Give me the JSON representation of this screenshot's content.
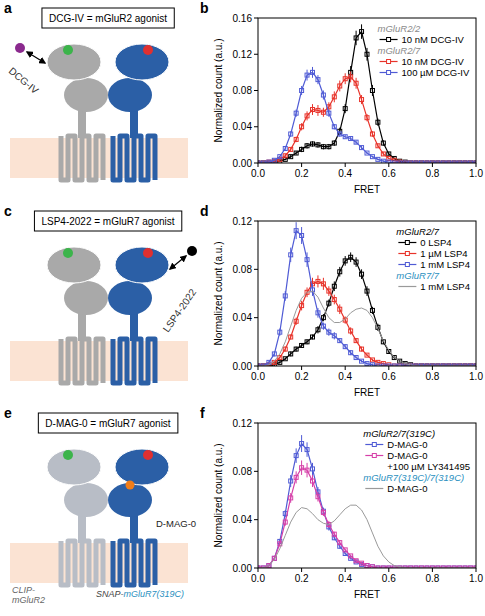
{
  "diagrams": [
    {
      "panel": "a",
      "box": "DCG-IV = mGluR2 agonist",
      "ligand": "DCG-IV"
    },
    {
      "panel": "c",
      "box": "LSP4-2022 = mGluR7 agonist",
      "ligand": "LSP4-2022"
    },
    {
      "panel": "e",
      "box": "D-MAG-0 = mGluR7 agonist",
      "ligand": "D-MAG-0",
      "subunit_labels": [
        "CLIP-mGluR2",
        "SNAP-mGluR7(319C)"
      ]
    }
  ],
  "chart_data": [
    {
      "panel": "b",
      "type": "line",
      "x_label": "FRET",
      "y_label": "Normalized count (a.u.)",
      "x": [
        0,
        0.025,
        0.05,
        0.075,
        0.1,
        0.125,
        0.15,
        0.175,
        0.2,
        0.225,
        0.25,
        0.275,
        0.3,
        0.325,
        0.35,
        0.375,
        0.4,
        0.425,
        0.45,
        0.475,
        0.5,
        0.525,
        0.55,
        0.575,
        0.6,
        0.625,
        0.65,
        0.675,
        0.7,
        0.725,
        0.75,
        0.775,
        0.8,
        0.825,
        0.85,
        0.875,
        0.9,
        0.925,
        0.95,
        0.975,
        1
      ],
      "xlim": [
        0,
        1
      ],
      "ylim": [
        0,
        0.16
      ],
      "xticks": [
        {
          "value": 0,
          "label": "0.0"
        },
        0.2,
        0.4,
        0.6,
        0.8,
        {
          "value": 1,
          "label": "1.0"
        }
      ],
      "yticks": [
        {
          "value": 0,
          "label": "0.00"
        },
        0.04,
        0.08,
        0.12,
        0.16
      ],
      "legend": "top right",
      "series": [
        {
          "group": "mGluR2/2",
          "name": "10 nM DCG-IV",
          "color": "#000000",
          "marker": "square",
          "line_style": "solid",
          "values": [
            0,
            0,
            0,
            0.001,
            0.002,
            0.004,
            0.007,
            0.011,
            0.015,
            0.019,
            0.021,
            0.02,
            0.018,
            0.018,
            0.022,
            0.035,
            0.06,
            0.1,
            0.138,
            0.145,
            0.12,
            0.08,
            0.045,
            0.022,
            0.01,
            0.005,
            0.002,
            0.001,
            0,
            0,
            0,
            0,
            0,
            0,
            0,
            0,
            0,
            0,
            0,
            0,
            0
          ],
          "errors": [
            0,
            0,
            0,
            0.001,
            0.001,
            0.001,
            0.002,
            0.002,
            0.003,
            0.003,
            0.003,
            0.003,
            0.003,
            0.003,
            0.003,
            0.004,
            0.005,
            0.007,
            0.008,
            0.008,
            0.007,
            0.006,
            0.004,
            0.003,
            0.002,
            0.001,
            0.001,
            0.001,
            0,
            0,
            0,
            0,
            0,
            0,
            0,
            0,
            0,
            0,
            0,
            0,
            0
          ]
        },
        {
          "group": "mGluR2/7",
          "name": "10 nM DCG-IV",
          "color": "#e8332a",
          "marker": "square",
          "line_style": "solid",
          "values": [
            0,
            0,
            0.001,
            0.002,
            0.004,
            0.008,
            0.015,
            0.026,
            0.04,
            0.052,
            0.059,
            0.058,
            0.056,
            0.062,
            0.073,
            0.085,
            0.093,
            0.095,
            0.088,
            0.07,
            0.05,
            0.032,
            0.019,
            0.01,
            0.005,
            0.003,
            0.001,
            0,
            0,
            0,
            0,
            0,
            0,
            0,
            0,
            0,
            0,
            0,
            0,
            0,
            0
          ],
          "errors": [
            0,
            0,
            0.001,
            0.001,
            0.001,
            0.002,
            0.002,
            0.003,
            0.004,
            0.005,
            0.006,
            0.006,
            0.005,
            0.005,
            0.006,
            0.006,
            0.006,
            0.006,
            0.006,
            0.005,
            0.004,
            0.003,
            0.002,
            0.002,
            0.001,
            0.001,
            0.001,
            0,
            0,
            0,
            0,
            0,
            0,
            0,
            0,
            0,
            0,
            0,
            0,
            0,
            0
          ]
        },
        {
          "name": "100 µM DCG-IV",
          "color": "#4f5bd5",
          "marker": "square",
          "line_style": "solid",
          "values": [
            0,
            0,
            0.001,
            0.003,
            0.007,
            0.016,
            0.032,
            0.055,
            0.08,
            0.097,
            0.1,
            0.092,
            0.075,
            0.055,
            0.04,
            0.032,
            0.029,
            0.027,
            0.023,
            0.017,
            0.011,
            0.007,
            0.004,
            0.002,
            0.001,
            0,
            0,
            0,
            0,
            0,
            0,
            0,
            0,
            0,
            0,
            0,
            0,
            0,
            0,
            0,
            0
          ],
          "errors": [
            0,
            0,
            0.001,
            0.001,
            0.001,
            0.002,
            0.003,
            0.004,
            0.005,
            0.006,
            0.006,
            0.005,
            0.005,
            0.004,
            0.003,
            0.003,
            0.002,
            0.002,
            0.002,
            0.002,
            0.001,
            0.001,
            0.001,
            0.001,
            0,
            0,
            0,
            0,
            0,
            0,
            0,
            0,
            0,
            0,
            0,
            0,
            0,
            0,
            0,
            0,
            0
          ]
        }
      ]
    },
    {
      "panel": "d",
      "type": "line",
      "x_label": "FRET",
      "y_label": "Normalized count (a.u.)",
      "x": [
        0,
        0.025,
        0.05,
        0.075,
        0.1,
        0.125,
        0.15,
        0.175,
        0.2,
        0.225,
        0.25,
        0.275,
        0.3,
        0.325,
        0.35,
        0.375,
        0.4,
        0.425,
        0.45,
        0.475,
        0.5,
        0.525,
        0.55,
        0.575,
        0.6,
        0.625,
        0.65,
        0.675,
        0.7,
        0.725,
        0.75,
        0.775,
        0.8,
        0.825,
        0.85,
        0.875,
        0.9,
        0.925,
        0.95,
        0.975,
        1
      ],
      "xlim": [
        0,
        1
      ],
      "ylim": [
        0,
        0.12
      ],
      "xticks": [
        {
          "value": 0,
          "label": "0.0"
        },
        0.2,
        0.4,
        0.6,
        0.8,
        {
          "value": 1,
          "label": "1.0"
        }
      ],
      "yticks": [
        {
          "value": 0,
          "label": "0.00"
        },
        0.04,
        0.08,
        0.12
      ],
      "legend": "top right",
      "series": [
        {
          "group": "mGluR2/7",
          "name": "0 LSP4",
          "color": "#000000",
          "marker": "square",
          "line_style": "solid",
          "values": [
            0,
            0,
            0,
            0.001,
            0.003,
            0.006,
            0.01,
            0.014,
            0.017,
            0.02,
            0.024,
            0.03,
            0.04,
            0.052,
            0.066,
            0.078,
            0.087,
            0.09,
            0.086,
            0.076,
            0.062,
            0.046,
            0.032,
            0.02,
            0.012,
            0.007,
            0.004,
            0.002,
            0.001,
            0,
            0,
            0,
            0,
            0,
            0,
            0,
            0,
            0,
            0,
            0,
            0
          ],
          "errors": [
            0,
            0,
            0,
            0.001,
            0.001,
            0.001,
            0.002,
            0.002,
            0.002,
            0.002,
            0.002,
            0.003,
            0.003,
            0.003,
            0.004,
            0.004,
            0.004,
            0.004,
            0.004,
            0.004,
            0.004,
            0.003,
            0.003,
            0.002,
            0.002,
            0.001,
            0.001,
            0.001,
            0.001,
            0,
            0,
            0,
            0,
            0,
            0,
            0,
            0,
            0,
            0,
            0,
            0
          ]
        },
        {
          "name": "1 µM LSP4",
          "color": "#e8332a",
          "marker": "square",
          "line_style": "solid",
          "values": [
            0,
            0,
            0.001,
            0.003,
            0.007,
            0.014,
            0.024,
            0.037,
            0.05,
            0.061,
            0.068,
            0.07,
            0.068,
            0.062,
            0.055,
            0.047,
            0.038,
            0.029,
            0.021,
            0.014,
            0.009,
            0.005,
            0.003,
            0.002,
            0.001,
            0,
            0,
            0,
            0,
            0,
            0,
            0,
            0,
            0,
            0,
            0,
            0,
            0,
            0,
            0,
            0
          ],
          "errors": [
            0,
            0,
            0.001,
            0.001,
            0.001,
            0.002,
            0.002,
            0.003,
            0.004,
            0.004,
            0.005,
            0.005,
            0.005,
            0.004,
            0.004,
            0.004,
            0.003,
            0.003,
            0.002,
            0.002,
            0.001,
            0.001,
            0.001,
            0.001,
            0,
            0,
            0,
            0,
            0,
            0,
            0,
            0,
            0,
            0,
            0,
            0,
            0,
            0,
            0,
            0,
            0
          ]
        },
        {
          "name": "1 mM LSP4",
          "color": "#4f5bd5",
          "marker": "square",
          "line_style": "solid",
          "values": [
            0,
            0,
            0.003,
            0.01,
            0.028,
            0.058,
            0.092,
            0.112,
            0.108,
            0.088,
            0.063,
            0.044,
            0.033,
            0.028,
            0.025,
            0.021,
            0.016,
            0.011,
            0.007,
            0.004,
            0.002,
            0.001,
            0,
            0,
            0,
            0,
            0,
            0,
            0,
            0,
            0,
            0,
            0,
            0,
            0,
            0,
            0,
            0,
            0,
            0,
            0
          ],
          "errors": [
            0,
            0,
            0.001,
            0.002,
            0.003,
            0.004,
            0.006,
            0.007,
            0.007,
            0.006,
            0.005,
            0.004,
            0.003,
            0.003,
            0.003,
            0.002,
            0.002,
            0.002,
            0.001,
            0.001,
            0.001,
            0.001,
            0,
            0,
            0,
            0,
            0,
            0,
            0,
            0,
            0,
            0,
            0,
            0,
            0,
            0,
            0,
            0,
            0,
            0,
            0
          ]
        },
        {
          "group": "mGluR7/7",
          "name": "1 mM LSP4",
          "color": "#9a9a9a",
          "marker": "none",
          "line_style": "solid",
          "values": [
            0,
            0,
            0.001,
            0.004,
            0.01,
            0.02,
            0.033,
            0.046,
            0.056,
            0.061,
            0.062,
            0.057,
            0.048,
            0.04,
            0.036,
            0.036,
            0.039,
            0.044,
            0.047,
            0.048,
            0.046,
            0.04,
            0.031,
            0.021,
            0.013,
            0.007,
            0.004,
            0.002,
            0.001,
            0,
            0,
            0,
            0,
            0,
            0,
            0,
            0,
            0,
            0,
            0,
            0
          ]
        }
      ]
    },
    {
      "panel": "f",
      "type": "line",
      "x_label": "FRET",
      "y_label": "Normalized count (a.u.)",
      "x": [
        0,
        0.025,
        0.05,
        0.075,
        0.1,
        0.125,
        0.15,
        0.175,
        0.2,
        0.225,
        0.25,
        0.275,
        0.3,
        0.325,
        0.35,
        0.375,
        0.4,
        0.425,
        0.45,
        0.475,
        0.5,
        0.525,
        0.55,
        0.575,
        0.6,
        0.625,
        0.65,
        0.675,
        0.7,
        0.725,
        0.75,
        0.775,
        0.8,
        0.825,
        0.85,
        0.875,
        0.9,
        0.925,
        0.95,
        0.975,
        1
      ],
      "xlim": [
        0,
        1
      ],
      "ylim": [
        0,
        0.12
      ],
      "xticks": [
        {
          "value": 0,
          "label": "0.0"
        },
        0.2,
        0.4,
        0.6,
        0.8,
        {
          "value": 1,
          "label": "1.0"
        }
      ],
      "yticks": [
        {
          "value": 0,
          "label": "0.00"
        },
        0.04,
        0.08,
        0.12
      ],
      "legend": "top right",
      "series": [
        {
          "group": "mGluR2/7(319C)",
          "name": "D-MAG-0",
          "color": "#4f5bd5",
          "marker": "square",
          "line_style": "solid",
          "values": [
            0,
            0,
            0.002,
            0.008,
            0.022,
            0.045,
            0.072,
            0.093,
            0.103,
            0.098,
            0.082,
            0.063,
            0.047,
            0.034,
            0.025,
            0.018,
            0.012,
            0.008,
            0.005,
            0.003,
            0.002,
            0.001,
            0,
            0,
            0,
            0,
            0,
            0,
            0,
            0,
            0,
            0,
            0,
            0,
            0,
            0,
            0,
            0,
            0,
            0,
            0
          ],
          "errors": [
            0,
            0,
            0.001,
            0.001,
            0.002,
            0.003,
            0.005,
            0.006,
            0.007,
            0.006,
            0.005,
            0.004,
            0.003,
            0.003,
            0.002,
            0.002,
            0.001,
            0.001,
            0.001,
            0.001,
            0,
            0,
            0,
            0,
            0,
            0,
            0,
            0,
            0,
            0,
            0,
            0,
            0,
            0,
            0,
            0,
            0,
            0,
            0,
            0,
            0
          ]
        },
        {
          "name": "D-MAG-0 +100 µM LY341495",
          "color": "#d63fa8",
          "marker": "square",
          "line_style": "solid",
          "values": [
            0,
            0,
            0.002,
            0.008,
            0.02,
            0.038,
            0.058,
            0.075,
            0.083,
            0.081,
            0.072,
            0.059,
            0.046,
            0.036,
            0.028,
            0.021,
            0.015,
            0.01,
            0.006,
            0.004,
            0.002,
            0.001,
            0,
            0,
            0,
            0,
            0,
            0,
            0,
            0,
            0,
            0,
            0,
            0,
            0,
            0,
            0,
            0,
            0,
            0,
            0
          ],
          "errors": [
            0,
            0,
            0.001,
            0.001,
            0.002,
            0.003,
            0.004,
            0.005,
            0.006,
            0.006,
            0.005,
            0.004,
            0.003,
            0.003,
            0.002,
            0.002,
            0.001,
            0.001,
            0.001,
            0.001,
            0,
            0,
            0,
            0,
            0,
            0,
            0,
            0,
            0,
            0,
            0,
            0,
            0,
            0,
            0,
            0,
            0,
            0,
            0,
            0,
            0
          ]
        },
        {
          "group": "mGluR7(319C)/7(319C)",
          "name": "D-MAG-0",
          "color": "#9a9a9a",
          "marker": "none",
          "line_style": "solid",
          "values": [
            0,
            0,
            0.002,
            0.007,
            0.016,
            0.027,
            0.038,
            0.046,
            0.05,
            0.049,
            0.045,
            0.04,
            0.037,
            0.036,
            0.039,
            0.044,
            0.049,
            0.052,
            0.052,
            0.048,
            0.04,
            0.029,
            0.018,
            0.01,
            0.005,
            0.002,
            0.001,
            0,
            0,
            0,
            0,
            0,
            0,
            0,
            0,
            0,
            0,
            0,
            0,
            0,
            0
          ]
        }
      ]
    }
  ]
}
